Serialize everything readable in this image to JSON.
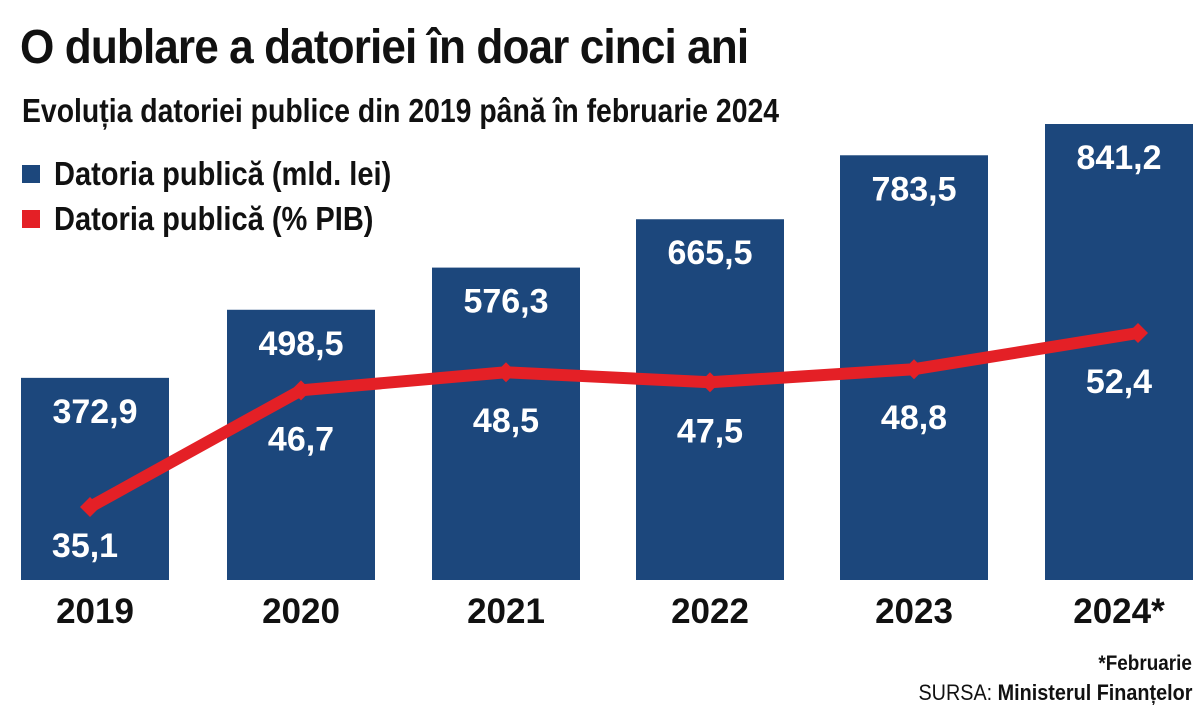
{
  "title": "O dublare a datoriei în doar cinci ani",
  "subtitle": "Evoluția datoriei publice din 2019 până în februarie 2024",
  "colors": {
    "bar": "#1c477c",
    "line": "#e42026"
  },
  "chart_data": {
    "type": "bar",
    "categories": [
      "2019",
      "2020",
      "2021",
      "2022",
      "2023",
      "2024*"
    ],
    "series": [
      {
        "name": "Datoria publică (mld. lei)",
        "type": "bar",
        "values": [
          372.9,
          498.5,
          576.3,
          665.5,
          783.5,
          841.2
        ],
        "labels": [
          "372,9",
          "498,5",
          "576,3",
          "665,5",
          "783,5",
          "841,2"
        ]
      },
      {
        "name": "Datoria publică (% PIB)",
        "type": "line",
        "values": [
          35.1,
          46.7,
          48.5,
          47.5,
          48.8,
          52.4
        ],
        "labels": [
          "35,1",
          "46,7",
          "48,5",
          "47,5",
          "48,8",
          "52,4"
        ]
      }
    ],
    "legend": "top-left"
  },
  "footnote": "*Februarie",
  "source": {
    "prefix": "SURSA:",
    "name": "Ministerul Finanțelor"
  }
}
